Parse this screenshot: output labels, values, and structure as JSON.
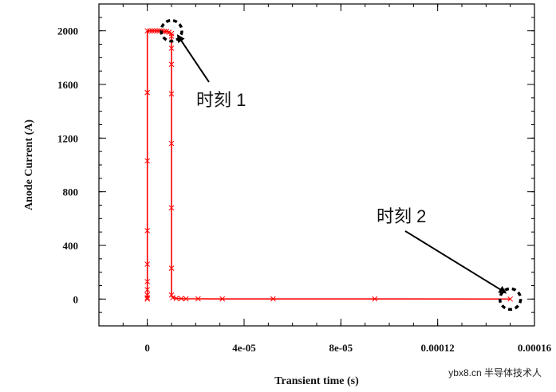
{
  "chart_data": {
    "type": "line",
    "title": "",
    "xlabel": "Transient time (s)",
    "ylabel": "Anode Current (A)",
    "xlim": [
      -2e-05,
      0.00016
    ],
    "ylim": [
      -200,
      2200
    ],
    "x_ticks": [
      0,
      4e-05,
      8e-05,
      0.00012,
      0.00016
    ],
    "x_tick_labels": [
      "0",
      "4e-05",
      "8e-05",
      "0.00012",
      "0.00016"
    ],
    "y_ticks": [
      0,
      400,
      800,
      1200,
      1600,
      2000
    ],
    "y_tick_labels": [
      "0",
      "400",
      "800",
      "1200",
      "1600",
      "2000"
    ],
    "series": [
      {
        "name": "Anode Current",
        "color": "#ff0000",
        "marker": "x",
        "x": [
          0,
          0,
          0,
          0,
          0,
          0,
          0,
          0,
          0,
          0,
          1e-06,
          2e-06,
          3e-06,
          4e-06,
          5e-06,
          6e-06,
          7e-06,
          8e-06,
          9e-06,
          1e-05,
          1e-05,
          1e-05,
          1e-05,
          1e-05,
          1e-05,
          1e-05,
          1e-05,
          1e-05,
          1.05e-05,
          1.2e-05,
          1.4e-05,
          1.6e-05,
          2.1e-05,
          3.1e-05,
          5.2e-05,
          9.4e-05,
          0.00015
        ],
        "y": [
          0,
          10,
          30,
          70,
          130,
          260,
          510,
          1030,
          1540,
          2000,
          2000,
          2000,
          2000,
          2000,
          2000,
          2000,
          1995,
          1995,
          1990,
          1980,
          1960,
          1870,
          1750,
          1530,
          1160,
          680,
          230,
          30,
          10,
          5,
          3,
          2,
          2,
          1,
          1,
          1,
          0
        ]
      }
    ],
    "annotations": [
      {
        "label": "时刻 1",
        "x": 1e-05,
        "y": 2000
      },
      {
        "label": "时刻 2",
        "x": 0.00015,
        "y": 0
      }
    ]
  },
  "watermark": "ybx8.cn 半导体技术人"
}
